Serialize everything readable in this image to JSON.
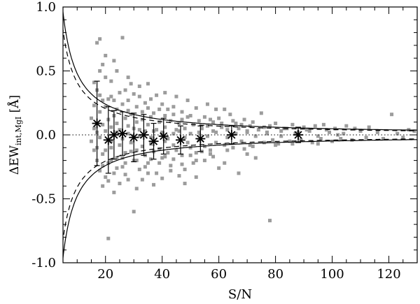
{
  "chart_data": {
    "type": "scatter",
    "title": "",
    "xlabel": "S/N",
    "ylabel": {
      "prefix": "ΔEW",
      "subscript": "int,MgI",
      "suffix": " [Å]"
    },
    "xlim": [
      5,
      130
    ],
    "ylim": [
      -1.0,
      1.0
    ],
    "x_ticks": [
      20,
      40,
      60,
      80,
      100,
      120
    ],
    "y_ticks": [
      -1.0,
      -0.5,
      0.0,
      0.5,
      1.0
    ],
    "x_tick_labels": [
      "20",
      "40",
      "60",
      "80",
      "100",
      "120"
    ],
    "y_tick_labels": [
      "-1.0",
      "-0.5",
      "0.0",
      "0.5",
      "1.0"
    ],
    "grid": false,
    "legend": "none",
    "colors": {
      "points": "#9c9c9c",
      "lines": "#000000"
    },
    "reference_line": {
      "y": 0.0,
      "style": "dotted"
    },
    "envelope_curves": [
      {
        "style": "solid",
        "sign": 1,
        "coefficient": 4.8
      },
      {
        "style": "solid",
        "sign": -1,
        "coefficient": 4.8
      },
      {
        "style": "dashed",
        "sign": 1,
        "coefficient": 4.1
      },
      {
        "style": "dashed",
        "sign": -1,
        "coefficient": 4.1
      }
    ],
    "binned_means": [
      {
        "x": 17,
        "y": 0.09,
        "err": 0.33
      },
      {
        "x": 21,
        "y": -0.04,
        "err": 0.26
      },
      {
        "x": 23,
        "y": 0.0,
        "err": 0.19
      },
      {
        "x": 26,
        "y": 0.01,
        "err": 0.17
      },
      {
        "x": 30,
        "y": -0.02,
        "err": 0.19
      },
      {
        "x": 33.5,
        "y": 0.0,
        "err": 0.16
      },
      {
        "x": 37,
        "y": -0.05,
        "err": 0.14
      },
      {
        "x": 40.5,
        "y": -0.01,
        "err": 0.14
      },
      {
        "x": 46.5,
        "y": -0.04,
        "err": 0.11
      },
      {
        "x": 53.5,
        "y": -0.03,
        "err": 0.1
      },
      {
        "x": 64.5,
        "y": 0.0,
        "err": 0.07
      },
      {
        "x": 88,
        "y": 0.0,
        "err": 0.06
      }
    ],
    "points": [
      [
        17,
        0.72
      ],
      [
        18,
        0.75
      ],
      [
        19,
        0.55
      ],
      [
        16,
        0.41
      ],
      [
        17,
        0.35
      ],
      [
        18,
        0.31
      ],
      [
        20,
        0.45
      ],
      [
        22,
        0.42
      ],
      [
        24,
        0.5
      ],
      [
        25,
        0.33
      ],
      [
        26,
        0.76
      ],
      [
        27,
        0.35
      ],
      [
        29,
        0.4
      ],
      [
        21,
        0.28
      ],
      [
        23,
        0.27
      ],
      [
        28,
        0.27
      ],
      [
        30,
        0.32
      ],
      [
        32,
        0.3
      ],
      [
        34,
        0.25
      ],
      [
        36,
        0.28
      ],
      [
        38,
        0.31
      ],
      [
        40,
        0.24
      ],
      [
        42,
        0.2
      ],
      [
        44,
        0.22
      ],
      [
        47,
        0.18
      ],
      [
        50,
        0.15
      ],
      [
        52,
        0.21
      ],
      [
        55,
        0.14
      ],
      [
        57,
        0.12
      ],
      [
        60,
        0.13
      ],
      [
        62,
        0.2
      ],
      [
        64,
        0.16
      ],
      [
        66,
        0.09
      ],
      [
        69,
        0.12
      ],
      [
        72,
        0.1
      ],
      [
        75,
        0.17
      ],
      [
        78,
        0.07
      ],
      [
        80,
        0.09
      ],
      [
        83,
        0.05
      ],
      [
        86,
        0.08
      ],
      [
        90,
        0.06
      ],
      [
        94,
        0.07
      ],
      [
        97,
        0.08
      ],
      [
        101,
        0.05
      ],
      [
        105,
        0.07
      ],
      [
        108,
        0.05
      ],
      [
        113,
        0.06
      ],
      [
        121,
        0.16
      ],
      [
        127,
        0.04
      ],
      [
        129,
        0.03
      ],
      [
        15,
        0.13
      ],
      [
        16,
        0.05
      ],
      [
        18,
        0.18
      ],
      [
        19,
        0.08
      ],
      [
        20,
        0.22
      ],
      [
        21,
        0.12
      ],
      [
        22,
        0.06
      ],
      [
        23,
        0.15
      ],
      [
        24,
        0.09
      ],
      [
        25,
        0.04
      ],
      [
        27,
        0.13
      ],
      [
        28,
        0.07
      ],
      [
        29,
        0.16
      ],
      [
        31,
        0.1
      ],
      [
        32,
        0.04
      ],
      [
        33,
        0.12
      ],
      [
        35,
        0.08
      ],
      [
        36,
        0.14
      ],
      [
        37,
        0.03
      ],
      [
        39,
        0.1
      ],
      [
        41,
        0.06
      ],
      [
        43,
        0.11
      ],
      [
        45,
        0.04
      ],
      [
        46,
        0.09
      ],
      [
        48,
        0.05
      ],
      [
        51,
        0.08
      ],
      [
        54,
        0.05
      ],
      [
        56,
        0.07
      ],
      [
        58,
        0.03
      ],
      [
        61,
        0.06
      ],
      [
        63,
        0.04
      ],
      [
        67,
        0.05
      ],
      [
        70,
        0.03
      ],
      [
        74,
        0.04
      ],
      [
        77,
        0.02
      ],
      [
        82,
        0.03
      ],
      [
        88,
        0.02
      ],
      [
        92,
        0.03
      ],
      [
        99,
        0.02
      ],
      [
        104,
        0.01
      ],
      [
        110,
        0.03
      ],
      [
        116,
        0.02
      ],
      [
        123,
        0.01
      ],
      [
        15,
        -0.05
      ],
      [
        16,
        -0.12
      ],
      [
        17,
        -0.2
      ],
      [
        18,
        -0.28
      ],
      [
        19,
        -0.15
      ],
      [
        20,
        -0.33
      ],
      [
        21,
        -0.22
      ],
      [
        22,
        -0.1
      ],
      [
        23,
        -0.3
      ],
      [
        24,
        -0.18
      ],
      [
        25,
        -0.08
      ],
      [
        26,
        -0.25
      ],
      [
        27,
        -0.14
      ],
      [
        28,
        -0.35
      ],
      [
        29,
        -0.06
      ],
      [
        30,
        -0.2
      ],
      [
        31,
        -0.12
      ],
      [
        32,
        -0.27
      ],
      [
        33,
        -0.09
      ],
      [
        34,
        -0.16
      ],
      [
        35,
        -0.22
      ],
      [
        36,
        -0.07
      ],
      [
        37,
        -0.13
      ],
      [
        38,
        -0.3
      ],
      [
        39,
        -0.11
      ],
      [
        40,
        -0.18
      ],
      [
        41,
        -0.05
      ],
      [
        42,
        -0.14
      ],
      [
        43,
        -0.24
      ],
      [
        44,
        -0.08
      ],
      [
        45,
        -0.12
      ],
      [
        47,
        -0.16
      ],
      [
        49,
        -0.06
      ],
      [
        50,
        -0.1
      ],
      [
        52,
        -0.14
      ],
      [
        53,
        -0.04
      ],
      [
        55,
        -0.09
      ],
      [
        57,
        -0.12
      ],
      [
        59,
        -0.06
      ],
      [
        60,
        -0.26
      ],
      [
        62,
        -0.08
      ],
      [
        65,
        -0.1
      ],
      [
        68,
        -0.05
      ],
      [
        71,
        -0.08
      ],
      [
        73,
        -0.18
      ],
      [
        76,
        -0.06
      ],
      [
        79,
        -0.04
      ],
      [
        81,
        -0.07
      ],
      [
        85,
        -0.05
      ],
      [
        89,
        -0.04
      ],
      [
        93,
        -0.06
      ],
      [
        96,
        -0.03
      ],
      [
        100,
        -0.05
      ],
      [
        103,
        -0.03
      ],
      [
        107,
        -0.04
      ],
      [
        112,
        -0.02
      ],
      [
        118,
        -0.03
      ],
      [
        125,
        -0.02
      ],
      [
        19,
        -0.4
      ],
      [
        21,
        -0.36
      ],
      [
        23,
        -0.45
      ],
      [
        25,
        -0.38
      ],
      [
        27,
        -0.31
      ],
      [
        30,
        -0.6
      ],
      [
        31,
        -0.42
      ],
      [
        33,
        -0.35
      ],
      [
        35,
        -0.3
      ],
      [
        37,
        -0.39
      ],
      [
        40,
        -0.34
      ],
      [
        43,
        -0.28
      ],
      [
        46,
        -0.32
      ],
      [
        48,
        -0.27
      ],
      [
        51,
        -0.22
      ],
      [
        55,
        -0.2
      ],
      [
        58,
        -0.17
      ],
      [
        67,
        -0.3
      ],
      [
        21,
        -0.81
      ],
      [
        78,
        -0.67
      ],
      [
        17,
        0.02
      ],
      [
        18,
        -0.02
      ],
      [
        20,
        0.03
      ],
      [
        22,
        -0.05
      ],
      [
        24,
        0.02
      ],
      [
        26,
        -0.03
      ],
      [
        28,
        0.01
      ],
      [
        30,
        0.05
      ],
      [
        32,
        -0.01
      ],
      [
        34,
        0.03
      ],
      [
        36,
        -0.02
      ],
      [
        38,
        0.04
      ],
      [
        40,
        0.02
      ],
      [
        42,
        -0.03
      ],
      [
        44,
        0.01
      ],
      [
        46,
        0.03
      ],
      [
        48,
        -0.02
      ],
      [
        50,
        0.01
      ],
      [
        53,
        0.02
      ],
      [
        56,
        -0.01
      ],
      [
        59,
        0.02
      ],
      [
        63,
        -0.02
      ],
      [
        66,
        0.01
      ],
      [
        70,
        0.02
      ],
      [
        73,
        -0.01
      ],
      [
        77,
        0.01
      ],
      [
        82,
        -0.01
      ],
      [
        87,
        0.01
      ],
      [
        95,
        -0.01
      ],
      [
        102,
        0.0
      ],
      [
        16,
        0.23
      ],
      [
        19,
        0.27
      ],
      [
        22,
        0.3
      ],
      [
        24,
        0.2
      ],
      [
        26,
        0.24
      ],
      [
        28,
        0.19
      ],
      [
        31,
        0.22
      ],
      [
        33,
        0.18
      ],
      [
        35,
        0.21
      ],
      [
        37,
        0.17
      ],
      [
        39,
        0.2
      ],
      [
        41,
        0.15
      ],
      [
        44,
        0.16
      ],
      [
        47,
        0.12
      ],
      [
        49,
        0.14
      ],
      [
        53,
        0.11
      ],
      [
        58,
        0.1
      ],
      [
        61,
        0.09
      ],
      [
        65,
        0.11
      ],
      [
        68,
        0.08
      ],
      [
        71,
        0.07
      ],
      [
        76,
        0.06
      ],
      [
        84,
        0.05
      ],
      [
        91,
        0.04
      ],
      [
        98,
        0.04
      ],
      [
        17,
        -0.1
      ],
      [
        19,
        -0.24
      ],
      [
        20,
        -0.12
      ],
      [
        22,
        -0.2
      ],
      [
        24,
        -0.26
      ],
      [
        26,
        -0.18
      ],
      [
        27,
        -0.22
      ],
      [
        29,
        -0.13
      ],
      [
        31,
        -0.2
      ],
      [
        34,
        -0.25
      ],
      [
        36,
        -0.19
      ],
      [
        39,
        -0.22
      ],
      [
        41,
        -0.17
      ],
      [
        44,
        -0.19
      ],
      [
        47,
        -0.23
      ],
      [
        50,
        -0.16
      ],
      [
        52,
        -0.2
      ],
      [
        54,
        -0.13
      ],
      [
        57,
        -0.15
      ],
      [
        63,
        -0.12
      ],
      [
        69,
        -0.11
      ],
      [
        72,
        -0.09
      ],
      [
        80,
        -0.08
      ],
      [
        86,
        -0.07
      ],
      [
        95,
        -0.07
      ],
      [
        18,
        0.5
      ],
      [
        20,
        0.62
      ],
      [
        23,
        0.58
      ],
      [
        28,
        0.45
      ],
      [
        32,
        0.38
      ],
      [
        35,
        0.4
      ],
      [
        41,
        0.33
      ],
      [
        45,
        0.3
      ],
      [
        49,
        0.27
      ],
      [
        56,
        0.24
      ],
      [
        59,
        0.2
      ],
      [
        48,
        -0.38
      ],
      [
        52,
        -0.33
      ],
      [
        62,
        -0.22
      ],
      [
        70,
        -0.15
      ]
    ]
  }
}
